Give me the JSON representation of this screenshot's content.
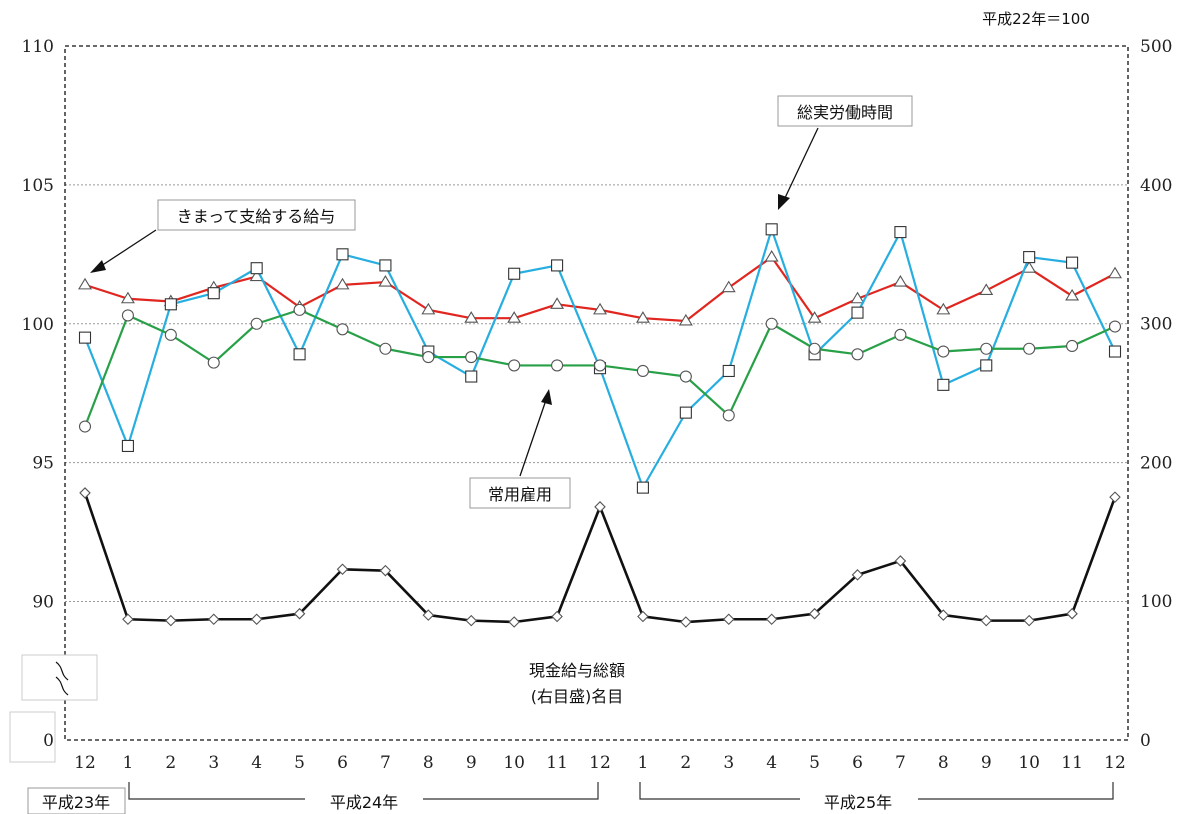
{
  "chart_data": {
    "type": "line",
    "unit_note": "平成22年＝100",
    "x": [
      "12",
      "1",
      "2",
      "3",
      "4",
      "5",
      "6",
      "7",
      "8",
      "9",
      "10",
      "11",
      "12",
      "1",
      "2",
      "3",
      "4",
      "5",
      "6",
      "7",
      "8",
      "9",
      "10",
      "11",
      "12"
    ],
    "year_groups": [
      "平成23年",
      "平成24年",
      "平成25年"
    ],
    "y_left": {
      "ticks": [
        "110",
        "105",
        "100",
        "95",
        "90",
        "0"
      ],
      "range": [
        85,
        110
      ],
      "axis_break": true
    },
    "y_right": {
      "ticks": [
        "500",
        "400",
        "300",
        "200",
        "100",
        "0"
      ],
      "range": [
        0,
        500
      ]
    },
    "grid": true,
    "series": [
      {
        "name": "きまって支給する給与",
        "axis": "left",
        "color": "#e0261f",
        "marker": "triangle",
        "values": [
          101.4,
          100.9,
          100.8,
          101.3,
          101.7,
          100.6,
          101.4,
          101.5,
          100.5,
          100.2,
          100.2,
          100.7,
          100.5,
          100.2,
          100.1,
          101.3,
          102.4,
          100.2,
          100.9,
          101.5,
          100.5,
          101.2,
          102.0,
          101.0,
          101.8
        ]
      },
      {
        "name": "総実労働時間",
        "axis": "left",
        "color": "#27aee0",
        "marker": "square",
        "values": [
          99.5,
          95.6,
          100.7,
          101.1,
          102.0,
          98.9,
          102.5,
          102.1,
          99.0,
          98.1,
          101.8,
          102.1,
          98.4,
          94.1,
          96.8,
          98.3,
          103.4,
          98.9,
          100.4,
          103.3,
          97.8,
          98.5,
          102.4,
          102.2,
          99.0
        ]
      },
      {
        "name": "常用雇用",
        "axis": "left",
        "color": "#28a048",
        "marker": "circle",
        "values": [
          96.3,
          100.3,
          99.6,
          98.6,
          100.0,
          100.5,
          99.8,
          99.1,
          98.8,
          98.8,
          98.5,
          98.5,
          98.5,
          98.3,
          98.1,
          96.7,
          100.0,
          99.1,
          98.9,
          99.6,
          99.0,
          99.1,
          99.1,
          99.2,
          99.9
        ]
      },
      {
        "name": "現金給与総額",
        "name_sub": "(右目盛)名目",
        "axis": "right",
        "color": "#111111",
        "marker": "diamond",
        "values": [
          178,
          87,
          86,
          87,
          87,
          91,
          123,
          122,
          90,
          86,
          85,
          89,
          168,
          89,
          85,
          87,
          87,
          91,
          119,
          129,
          90,
          86,
          86,
          91,
          175
        ]
      }
    ]
  }
}
